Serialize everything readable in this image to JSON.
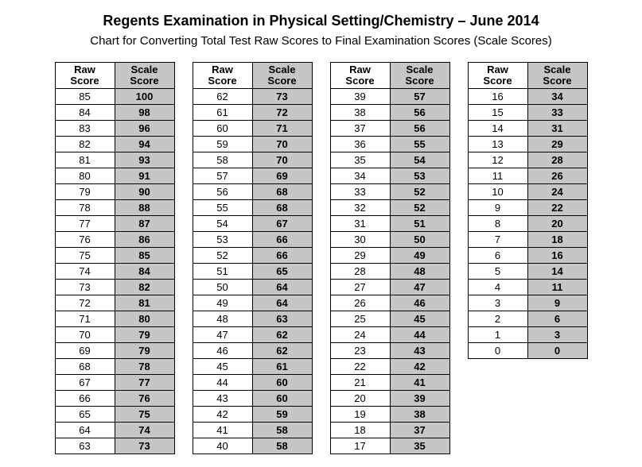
{
  "title": "Regents Examination in Physical Setting/Chemistry – June 2014",
  "subtitle": "Chart for Converting Total Test Raw Scores to Final Examination Scores (Scale Scores)",
  "headers": {
    "raw": "Raw\nScore",
    "scale": "Scale\nScore"
  },
  "columns": [
    {
      "rows": [
        {
          "raw": 85,
          "scale": 100
        },
        {
          "raw": 84,
          "scale": 98
        },
        {
          "raw": 83,
          "scale": 96
        },
        {
          "raw": 82,
          "scale": 94
        },
        {
          "raw": 81,
          "scale": 93
        },
        {
          "raw": 80,
          "scale": 91
        },
        {
          "raw": 79,
          "scale": 90
        },
        {
          "raw": 78,
          "scale": 88
        },
        {
          "raw": 77,
          "scale": 87
        },
        {
          "raw": 76,
          "scale": 86
        },
        {
          "raw": 75,
          "scale": 85
        },
        {
          "raw": 74,
          "scale": 84
        },
        {
          "raw": 73,
          "scale": 82
        },
        {
          "raw": 72,
          "scale": 81
        },
        {
          "raw": 71,
          "scale": 80
        },
        {
          "raw": 70,
          "scale": 79
        },
        {
          "raw": 69,
          "scale": 79
        },
        {
          "raw": 68,
          "scale": 78
        },
        {
          "raw": 67,
          "scale": 77
        },
        {
          "raw": 66,
          "scale": 76
        },
        {
          "raw": 65,
          "scale": 75
        },
        {
          "raw": 64,
          "scale": 74
        },
        {
          "raw": 63,
          "scale": 73
        }
      ]
    },
    {
      "rows": [
        {
          "raw": 62,
          "scale": 73
        },
        {
          "raw": 61,
          "scale": 72
        },
        {
          "raw": 60,
          "scale": 71
        },
        {
          "raw": 59,
          "scale": 70
        },
        {
          "raw": 58,
          "scale": 70
        },
        {
          "raw": 57,
          "scale": 69
        },
        {
          "raw": 56,
          "scale": 68
        },
        {
          "raw": 55,
          "scale": 68
        },
        {
          "raw": 54,
          "scale": 67
        },
        {
          "raw": 53,
          "scale": 66
        },
        {
          "raw": 52,
          "scale": 66
        },
        {
          "raw": 51,
          "scale": 65
        },
        {
          "raw": 50,
          "scale": 64
        },
        {
          "raw": 49,
          "scale": 64
        },
        {
          "raw": 48,
          "scale": 63
        },
        {
          "raw": 47,
          "scale": 62
        },
        {
          "raw": 46,
          "scale": 62
        },
        {
          "raw": 45,
          "scale": 61
        },
        {
          "raw": 44,
          "scale": 60
        },
        {
          "raw": 43,
          "scale": 60
        },
        {
          "raw": 42,
          "scale": 59
        },
        {
          "raw": 41,
          "scale": 58
        },
        {
          "raw": 40,
          "scale": 58
        }
      ]
    },
    {
      "rows": [
        {
          "raw": 39,
          "scale": 57
        },
        {
          "raw": 38,
          "scale": 56
        },
        {
          "raw": 37,
          "scale": 56
        },
        {
          "raw": 36,
          "scale": 55
        },
        {
          "raw": 35,
          "scale": 54
        },
        {
          "raw": 34,
          "scale": 53
        },
        {
          "raw": 33,
          "scale": 52
        },
        {
          "raw": 32,
          "scale": 52
        },
        {
          "raw": 31,
          "scale": 51
        },
        {
          "raw": 30,
          "scale": 50
        },
        {
          "raw": 29,
          "scale": 49
        },
        {
          "raw": 28,
          "scale": 48
        },
        {
          "raw": 27,
          "scale": 47
        },
        {
          "raw": 26,
          "scale": 46
        },
        {
          "raw": 25,
          "scale": 45
        },
        {
          "raw": 24,
          "scale": 44
        },
        {
          "raw": 23,
          "scale": 43
        },
        {
          "raw": 22,
          "scale": 42
        },
        {
          "raw": 21,
          "scale": 41
        },
        {
          "raw": 20,
          "scale": 39
        },
        {
          "raw": 19,
          "scale": 38
        },
        {
          "raw": 18,
          "scale": 37
        },
        {
          "raw": 17,
          "scale": 35
        }
      ]
    },
    {
      "rows": [
        {
          "raw": 16,
          "scale": 34
        },
        {
          "raw": 15,
          "scale": 33
        },
        {
          "raw": 14,
          "scale": 31
        },
        {
          "raw": 13,
          "scale": 29
        },
        {
          "raw": 12,
          "scale": 28
        },
        {
          "raw": 11,
          "scale": 26
        },
        {
          "raw": 10,
          "scale": 24
        },
        {
          "raw": 9,
          "scale": 22
        },
        {
          "raw": 8,
          "scale": 20
        },
        {
          "raw": 7,
          "scale": 18
        },
        {
          "raw": 6,
          "scale": 16
        },
        {
          "raw": 5,
          "scale": 14
        },
        {
          "raw": 4,
          "scale": 11
        },
        {
          "raw": 3,
          "scale": 9
        },
        {
          "raw": 2,
          "scale": 6
        },
        {
          "raw": 1,
          "scale": 3
        },
        {
          "raw": 0,
          "scale": 0
        }
      ]
    }
  ]
}
